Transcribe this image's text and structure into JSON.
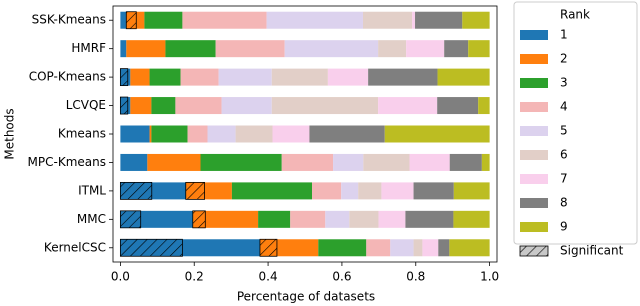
{
  "chart_data": {
    "type": "stacked-bar-horizontal",
    "x_label": "Percentage of datasets",
    "y_label": "Methods",
    "legend_title": "Rank",
    "categories": [
      "SSK-Kmeans",
      "HMRF",
      "COP-Kmeans",
      "LCVQE",
      "Kmeans",
      "MPC-Kmeans",
      "ITML",
      "MMC",
      "KernelCSC"
    ],
    "series": [
      {
        "name": "1",
        "color": "#1f77b4",
        "values": [
          0.016,
          0.016,
          0.027,
          0.027,
          0.079,
          0.073,
          0.177,
          0.196,
          0.378
        ]
      },
      {
        "name": "2",
        "color": "#ff7f0e",
        "values": [
          0.049,
          0.106,
          0.052,
          0.057,
          0.005,
          0.144,
          0.125,
          0.177,
          0.158
        ]
      },
      {
        "name": "3",
        "color": "#2ca02c",
        "values": [
          0.103,
          0.136,
          0.084,
          0.065,
          0.098,
          0.22,
          0.217,
          0.087,
          0.13
        ]
      },
      {
        "name": "4",
        "color": "#f4b6b6",
        "values": [
          0.228,
          0.187,
          0.103,
          0.125,
          0.054,
          0.139,
          0.079,
          0.095,
          0.065
        ]
      },
      {
        "name": "5",
        "color": "#dcd2ee",
        "values": [
          0.261,
          0.253,
          0.144,
          0.136,
          0.076,
          0.082,
          0.046,
          0.065,
          0.063
        ]
      },
      {
        "name": "6",
        "color": "#e2cfc8",
        "values": [
          0.133,
          0.076,
          0.152,
          0.288,
          0.1,
          0.125,
          0.063,
          0.079,
          0.024
        ]
      },
      {
        "name": "7",
        "color": "#f9cfec",
        "values": [
          0.008,
          0.103,
          0.109,
          0.16,
          0.1,
          0.109,
          0.087,
          0.073,
          0.043
        ]
      },
      {
        "name": "8",
        "color": "#7f7f7f",
        "values": [
          0.128,
          0.065,
          0.188,
          0.111,
          0.204,
          0.087,
          0.109,
          0.13,
          0.03
        ]
      },
      {
        "name": "9",
        "color": "#bcbd22",
        "values": [
          0.074,
          0.058,
          0.141,
          0.031,
          0.284,
          0.021,
          0.097,
          0.098,
          0.109
        ]
      }
    ],
    "significant": {
      "name": "Significant",
      "intervals": [
        [
          [
            0.016,
            0.043
          ]
        ],
        [],
        [
          [
            0,
            0.02
          ]
        ],
        [
          [
            0,
            0.02
          ]
        ],
        [],
        [],
        [
          [
            0,
            0.085
          ],
          [
            0.177,
            0.228
          ]
        ],
        [
          [
            0,
            0.055
          ],
          [
            0.196,
            0.23
          ]
        ],
        [
          [
            0,
            0.168
          ],
          [
            0.378,
            0.424
          ]
        ]
      ]
    },
    "xlim": [
      -0.02,
      1.02
    ],
    "xticks": [
      {
        "value": 0,
        "label": "0.0"
      },
      0.2,
      0.4,
      0.6,
      0.8,
      {
        "value": 1,
        "label": "1.0"
      }
    ]
  }
}
